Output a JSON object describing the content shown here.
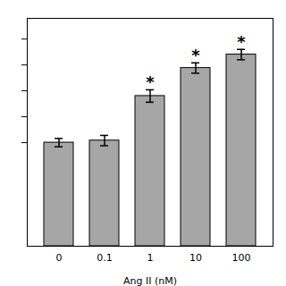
{
  "chart_data": {
    "type": "bar",
    "xlabel": "Ang II (nM)",
    "categories": [
      "0",
      "0.1",
      "1",
      "10",
      "100"
    ],
    "values": [
      1.0,
      1.02,
      1.45,
      1.72,
      1.85
    ],
    "errors": [
      0.04,
      0.05,
      0.06,
      0.05,
      0.05
    ],
    "ylim": [
      0,
      2.2
    ],
    "yticks": [
      1.0,
      1.25,
      1.5,
      1.75,
      2.0
    ],
    "tick_labels": "x",
    "annotations": [
      {
        "category": "1",
        "text": "*"
      },
      {
        "category": "10",
        "text": "*"
      },
      {
        "category": "100",
        "text": "*"
      }
    ]
  }
}
